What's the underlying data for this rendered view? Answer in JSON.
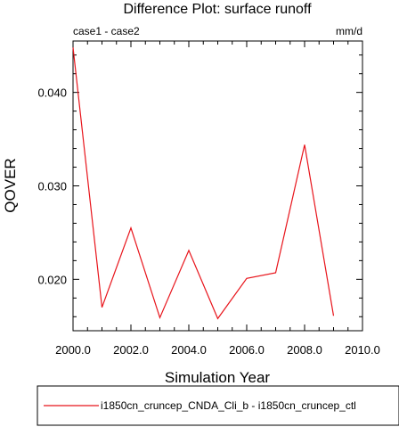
{
  "chart_data": {
    "type": "line",
    "title": "Difference Plot: surface runoff",
    "subtitle_left": "case1 - case2",
    "subtitle_right": "mm/d",
    "xlabel": "Simulation Year",
    "ylabel": "QOVER",
    "xlim": [
      2000.0,
      2010.0
    ],
    "ylim": [
      0.0145,
      0.0455
    ],
    "x_ticks": [
      2000.0,
      2002.0,
      2004.0,
      2006.0,
      2008.0,
      2010.0
    ],
    "x_tick_labels": [
      "2000.0",
      "2002.0",
      "2004.0",
      "2006.0",
      "2008.0",
      "2010.0"
    ],
    "y_ticks": [
      0.02,
      0.03,
      0.04
    ],
    "y_tick_labels": [
      "0.020",
      "0.030",
      "0.040"
    ],
    "grid": false,
    "legend_position": "bottom",
    "series": [
      {
        "name": "i1850cn_cruncep_CNDA_Cli_b - i1850cn_cruncep_ctl",
        "color": "#e8141b",
        "x": [
          2000,
          2001,
          2002,
          2003,
          2004,
          2005,
          2006,
          2007,
          2008,
          2009
        ],
        "y": [
          0.0448,
          0.017,
          0.0255,
          0.0159,
          0.0231,
          0.0158,
          0.0201,
          0.0207,
          0.0344,
          0.0161
        ]
      }
    ]
  }
}
